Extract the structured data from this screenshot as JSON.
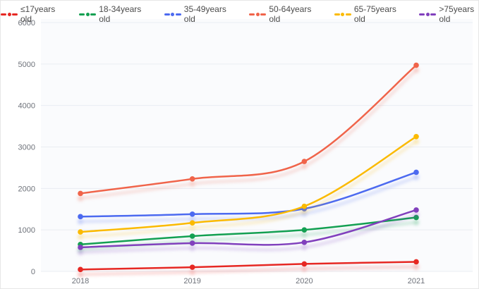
{
  "chart_data": {
    "type": "line",
    "title": "",
    "xlabel": "",
    "ylabel": "",
    "categories": [
      "2018",
      "2019",
      "2020",
      "2021"
    ],
    "series": [
      {
        "name": "≤17years old",
        "color": "#e62823",
        "values": [
          45,
          100,
          180,
          230
        ]
      },
      {
        "name": "18-34years old",
        "color": "#13a052",
        "values": [
          650,
          850,
          1000,
          1300
        ]
      },
      {
        "name": "35-49years old",
        "color": "#4c6af0",
        "values": [
          1320,
          1380,
          1510,
          2390
        ]
      },
      {
        "name": "50-64years old",
        "color": "#f0644a",
        "values": [
          1880,
          2230,
          2650,
          4970
        ]
      },
      {
        "name": "65-75years old",
        "color": "#fbba00",
        "values": [
          950,
          1170,
          1570,
          3250
        ]
      },
      {
        "name": ">75years old",
        "color": "#8140bd",
        "values": [
          580,
          680,
          700,
          1480
        ]
      }
    ],
    "ylim": [
      0,
      6000
    ],
    "yticks": [
      0,
      1000,
      2000,
      3000,
      4000,
      5000,
      6000
    ],
    "grid": true,
    "smooth": true,
    "legend_position": "top",
    "line_shadow": true
  },
  "style": {
    "grid_color": "#e9ecf2",
    "plot_bg": "#fafbfd",
    "tick_color": "#6e727a"
  }
}
